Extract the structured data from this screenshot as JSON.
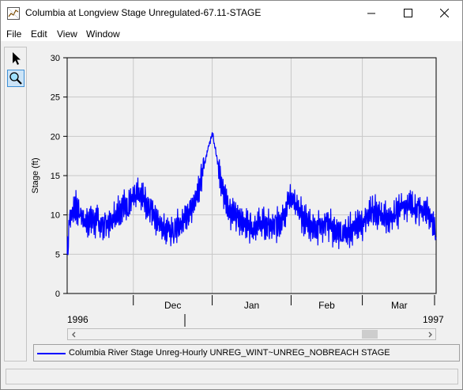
{
  "window": {
    "title": "Columbia at Longview Stage Unregulated-67.11-STAGE",
    "controls": [
      "minimize-icon",
      "maximize-icon",
      "close-icon"
    ]
  },
  "menu": {
    "items": [
      {
        "label": "File"
      },
      {
        "label": "Edit"
      },
      {
        "label": "View"
      },
      {
        "label": "Window"
      }
    ]
  },
  "toolbar": {
    "tools": [
      {
        "icon": "pointer-icon",
        "selected": false
      },
      {
        "icon": "zoom-icon",
        "selected": true
      }
    ]
  },
  "chart_data": {
    "type": "line",
    "title": "",
    "xlabel": "",
    "ylabel": "Stage (ft)",
    "ylim": [
      0,
      30
    ],
    "yticks": [
      0,
      5,
      10,
      15,
      20,
      25,
      30
    ],
    "xlim": [
      "1996-11-05",
      "1997-03-30"
    ],
    "month_boundaries": [
      "1996-12-01",
      "1997-01-01",
      "1997-02-01",
      "1997-03-01"
    ],
    "month_labels": [
      "Dec",
      "Jan",
      "Feb",
      "Mar"
    ],
    "year_labels": [
      {
        "label": "1996",
        "at": "start"
      },
      {
        "label": "1997",
        "at": "end"
      }
    ],
    "grid": true,
    "line_color": "#0000ff",
    "legend_placement": "bottom",
    "series": [
      {
        "name": "Columbia River Stage Unreg-Hourly UNREG_WINT~UNREG_NOBREACH STAGE",
        "x": [
          "1996-11-05",
          "1996-11-06",
          "1996-11-08",
          "1996-11-10",
          "1996-11-12",
          "1996-11-14",
          "1996-11-17",
          "1996-11-20",
          "1996-11-23",
          "1996-11-26",
          "1996-11-29",
          "1996-12-02",
          "1996-12-05",
          "1996-12-08",
          "1996-12-11",
          "1996-12-14",
          "1996-12-17",
          "1996-12-20",
          "1996-12-23",
          "1996-12-26",
          "1996-12-28",
          "1996-12-30",
          "1997-01-01",
          "1997-01-02",
          "1997-01-04",
          "1997-01-06",
          "1997-01-08",
          "1997-01-11",
          "1997-01-14",
          "1997-01-17",
          "1997-01-20",
          "1997-01-23",
          "1997-01-26",
          "1997-01-29",
          "1997-02-01",
          "1997-02-03",
          "1997-02-06",
          "1997-02-09",
          "1997-02-12",
          "1997-02-15",
          "1997-02-18",
          "1997-02-21",
          "1997-02-24",
          "1997-02-27",
          "1997-03-02",
          "1997-03-05",
          "1997-03-08",
          "1997-03-11",
          "1997-03-14",
          "1997-03-17",
          "1997-03-20",
          "1997-03-23",
          "1997-03-26",
          "1997-03-28",
          "1997-03-30"
        ],
        "values": [
          5.0,
          9.5,
          11.0,
          10.5,
          9.0,
          9.5,
          9.0,
          8.5,
          9.5,
          11.0,
          11.5,
          12.5,
          12.0,
          10.5,
          9.0,
          8.0,
          8.0,
          9.0,
          10.5,
          12.5,
          15.0,
          18.0,
          20.5,
          19.0,
          15.0,
          12.0,
          10.5,
          9.5,
          9.0,
          8.5,
          9.0,
          8.5,
          8.5,
          10.0,
          12.5,
          11.0,
          9.5,
          8.5,
          8.5,
          9.0,
          8.0,
          7.5,
          8.0,
          9.0,
          9.0,
          10.5,
          10.0,
          9.5,
          10.0,
          11.5,
          11.0,
          10.5,
          10.5,
          10.0,
          7.0
        ]
      }
    ]
  }
}
